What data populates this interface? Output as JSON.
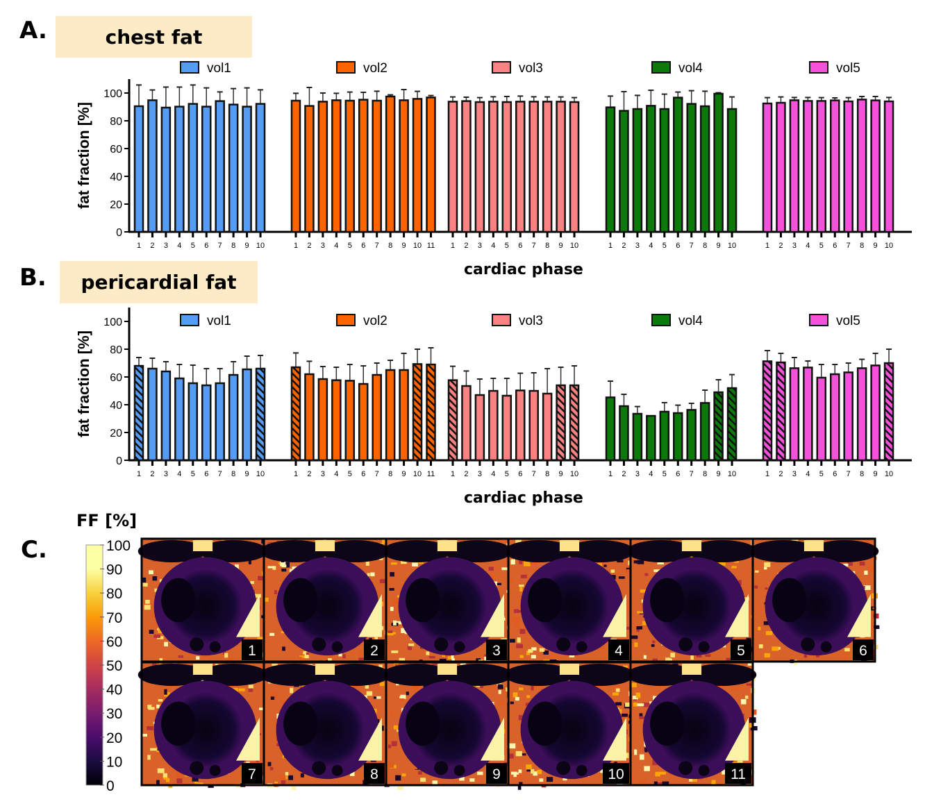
{
  "panels": {
    "A": {
      "letter": "A.",
      "title": "chest fat"
    },
    "B": {
      "letter": "B.",
      "title": "pericardial fat"
    },
    "C": {
      "letter": "C.",
      "colorbar_title": "FF [%]",
      "colorbar_ticks": [
        "100",
        "90",
        "80",
        "70",
        "60",
        "50",
        "40",
        "30",
        "20",
        "10",
        "0"
      ],
      "image_labels": [
        "1",
        "2",
        "3",
        "4",
        "5",
        "6",
        "7",
        "8",
        "9",
        "10",
        "11"
      ]
    }
  },
  "chart_data": [
    {
      "type": "bar",
      "title": "chest fat",
      "xlabel": "cardiac phase",
      "ylabel": "fat fraction [%]",
      "ylim": [
        0,
        110
      ],
      "yticks": [
        "0",
        "20",
        "40",
        "60",
        "80",
        "100"
      ],
      "legend_position": "top",
      "series": [
        {
          "name": "vol1",
          "color": "#559cf5",
          "categories": [
            "1",
            "2",
            "3",
            "4",
            "5",
            "6",
            "7",
            "8",
            "9",
            "10"
          ],
          "values": [
            90.5,
            94.8,
            89.5,
            90.2,
            92.2,
            90.2,
            94.2,
            91.7,
            90.2,
            92.2
          ],
          "error_upper": [
            105.8,
            102.2,
            104.3,
            104.3,
            105.8,
            103.7,
            100.8,
            103.2,
            103.7,
            102.3
          ],
          "hatched": []
        },
        {
          "name": "vol2",
          "color": "#fc6400",
          "categories": [
            "1",
            "2",
            "3",
            "4",
            "5",
            "6",
            "7",
            "8",
            "9",
            "10",
            "11"
          ],
          "values": [
            94.5,
            90.7,
            93.8,
            94.8,
            94.5,
            95.2,
            94.5,
            97.5,
            94.8,
            95.8,
            96.8
          ],
          "error_upper": [
            99.8,
            104.0,
            100.0,
            99.8,
            100.7,
            100.5,
            101.3,
            98.7,
            102.5,
            101.2,
            98.2
          ],
          "hatched": []
        },
        {
          "name": "vol3",
          "color": "#fb8282",
          "categories": [
            "1",
            "2",
            "3",
            "4",
            "5",
            "6",
            "7",
            "8",
            "9",
            "10"
          ],
          "values": [
            93.8,
            94.2,
            93.5,
            93.8,
            93.5,
            93.8,
            93.8,
            93.8,
            93.8,
            93.5
          ],
          "error_upper": [
            97.2,
            97.0,
            96.7,
            97.3,
            97.5,
            97.8,
            97.3,
            97.2,
            97.2,
            96.7
          ],
          "hatched": []
        },
        {
          "name": "vol4",
          "color": "#0b7a0b",
          "categories": [
            "1",
            "2",
            "3",
            "4",
            "5",
            "6",
            "7",
            "8",
            "9",
            "10"
          ],
          "values": [
            89.7,
            87.2,
            88.5,
            90.8,
            88.5,
            96.7,
            92.2,
            90.5,
            99.5,
            88.5
          ],
          "error_upper": [
            97.8,
            101.0,
            98.3,
            102.0,
            99.2,
            100.7,
            101.7,
            101.3,
            100.2,
            97.2
          ],
          "hatched": []
        },
        {
          "name": "vol5",
          "color": "#f552dc",
          "categories": [
            "1",
            "2",
            "3",
            "4",
            "5",
            "6",
            "7",
            "8",
            "9",
            "10"
          ],
          "values": [
            92.5,
            93.0,
            94.8,
            94.3,
            94.3,
            94.7,
            94.0,
            95.3,
            94.7,
            94.0
          ],
          "error_upper": [
            96.7,
            97.2,
            96.8,
            96.8,
            96.7,
            96.5,
            96.7,
            97.5,
            97.5,
            96.8
          ],
          "hatched": []
        }
      ]
    },
    {
      "type": "bar",
      "title": "pericardial fat",
      "xlabel": "cardiac phase",
      "ylabel": "fat fraction [%]",
      "ylim": [
        0,
        110
      ],
      "yticks": [
        "0",
        "20",
        "40",
        "60",
        "80",
        "100"
      ],
      "legend_position": "top",
      "series": [
        {
          "name": "vol1",
          "color": "#559cf5",
          "categories": [
            "1",
            "2",
            "3",
            "4",
            "5",
            "6",
            "7",
            "8",
            "9",
            "10"
          ],
          "values": [
            68.0,
            66.0,
            64.0,
            59.0,
            55.5,
            54.0,
            55.5,
            61.5,
            65.5,
            66.0
          ],
          "error_upper": [
            74.0,
            73.5,
            71.0,
            69.0,
            68.5,
            66.0,
            66.0,
            71.0,
            75.0,
            75.5
          ],
          "hatched": [
            1,
            10
          ]
        },
        {
          "name": "vol2",
          "color": "#fc6400",
          "categories": [
            "1",
            "2",
            "3",
            "4",
            "5",
            "6",
            "7",
            "8",
            "9",
            "10",
            "11"
          ],
          "values": [
            67.0,
            62.0,
            58.5,
            57.7,
            57.3,
            55.0,
            61.5,
            65.0,
            65.0,
            69.3,
            69.0
          ],
          "error_upper": [
            77.3,
            71.3,
            67.5,
            67.0,
            69.0,
            68.0,
            70.0,
            72.0,
            77.0,
            80.0,
            81.0
          ],
          "hatched": [
            1,
            10,
            11
          ]
        },
        {
          "name": "vol3",
          "color": "#fb8282",
          "categories": [
            "1",
            "2",
            "3",
            "4",
            "5",
            "6",
            "7",
            "8",
            "9",
            "10"
          ],
          "values": [
            57.7,
            53.5,
            47.0,
            50.0,
            46.5,
            50.3,
            50.0,
            48.0,
            54.0,
            54.0
          ],
          "error_upper": [
            67.7,
            64.3,
            58.5,
            59.0,
            59.0,
            62.7,
            63.0,
            66.0,
            67.0,
            68.0
          ],
          "hatched": [
            1,
            9,
            10
          ]
        },
        {
          "name": "vol4",
          "color": "#0b7a0b",
          "categories": [
            "1",
            "2",
            "3",
            "4",
            "5",
            "6",
            "7",
            "8",
            "9",
            "10"
          ],
          "values": [
            45.3,
            39.0,
            33.5,
            32.0,
            35.0,
            34.0,
            36.3,
            41.3,
            49.0,
            52.0
          ],
          "error_upper": [
            57.0,
            47.5,
            38.7,
            32.0,
            41.5,
            39.7,
            41.0,
            50.5,
            58.0,
            61.7
          ],
          "hatched": [
            9,
            10
          ]
        },
        {
          "name": "vol5",
          "color": "#f552dc",
          "categories": [
            "1",
            "2",
            "3",
            "4",
            "5",
            "6",
            "7",
            "8",
            "9",
            "10"
          ],
          "values": [
            71.3,
            70.5,
            66.3,
            66.8,
            59.5,
            62.0,
            63.3,
            66.3,
            68.3,
            70.0
          ],
          "error_upper": [
            79.0,
            77.0,
            74.0,
            71.5,
            69.0,
            69.0,
            70.0,
            72.7,
            77.0,
            80.0
          ],
          "hatched": [
            1,
            2,
            10
          ]
        }
      ]
    }
  ]
}
